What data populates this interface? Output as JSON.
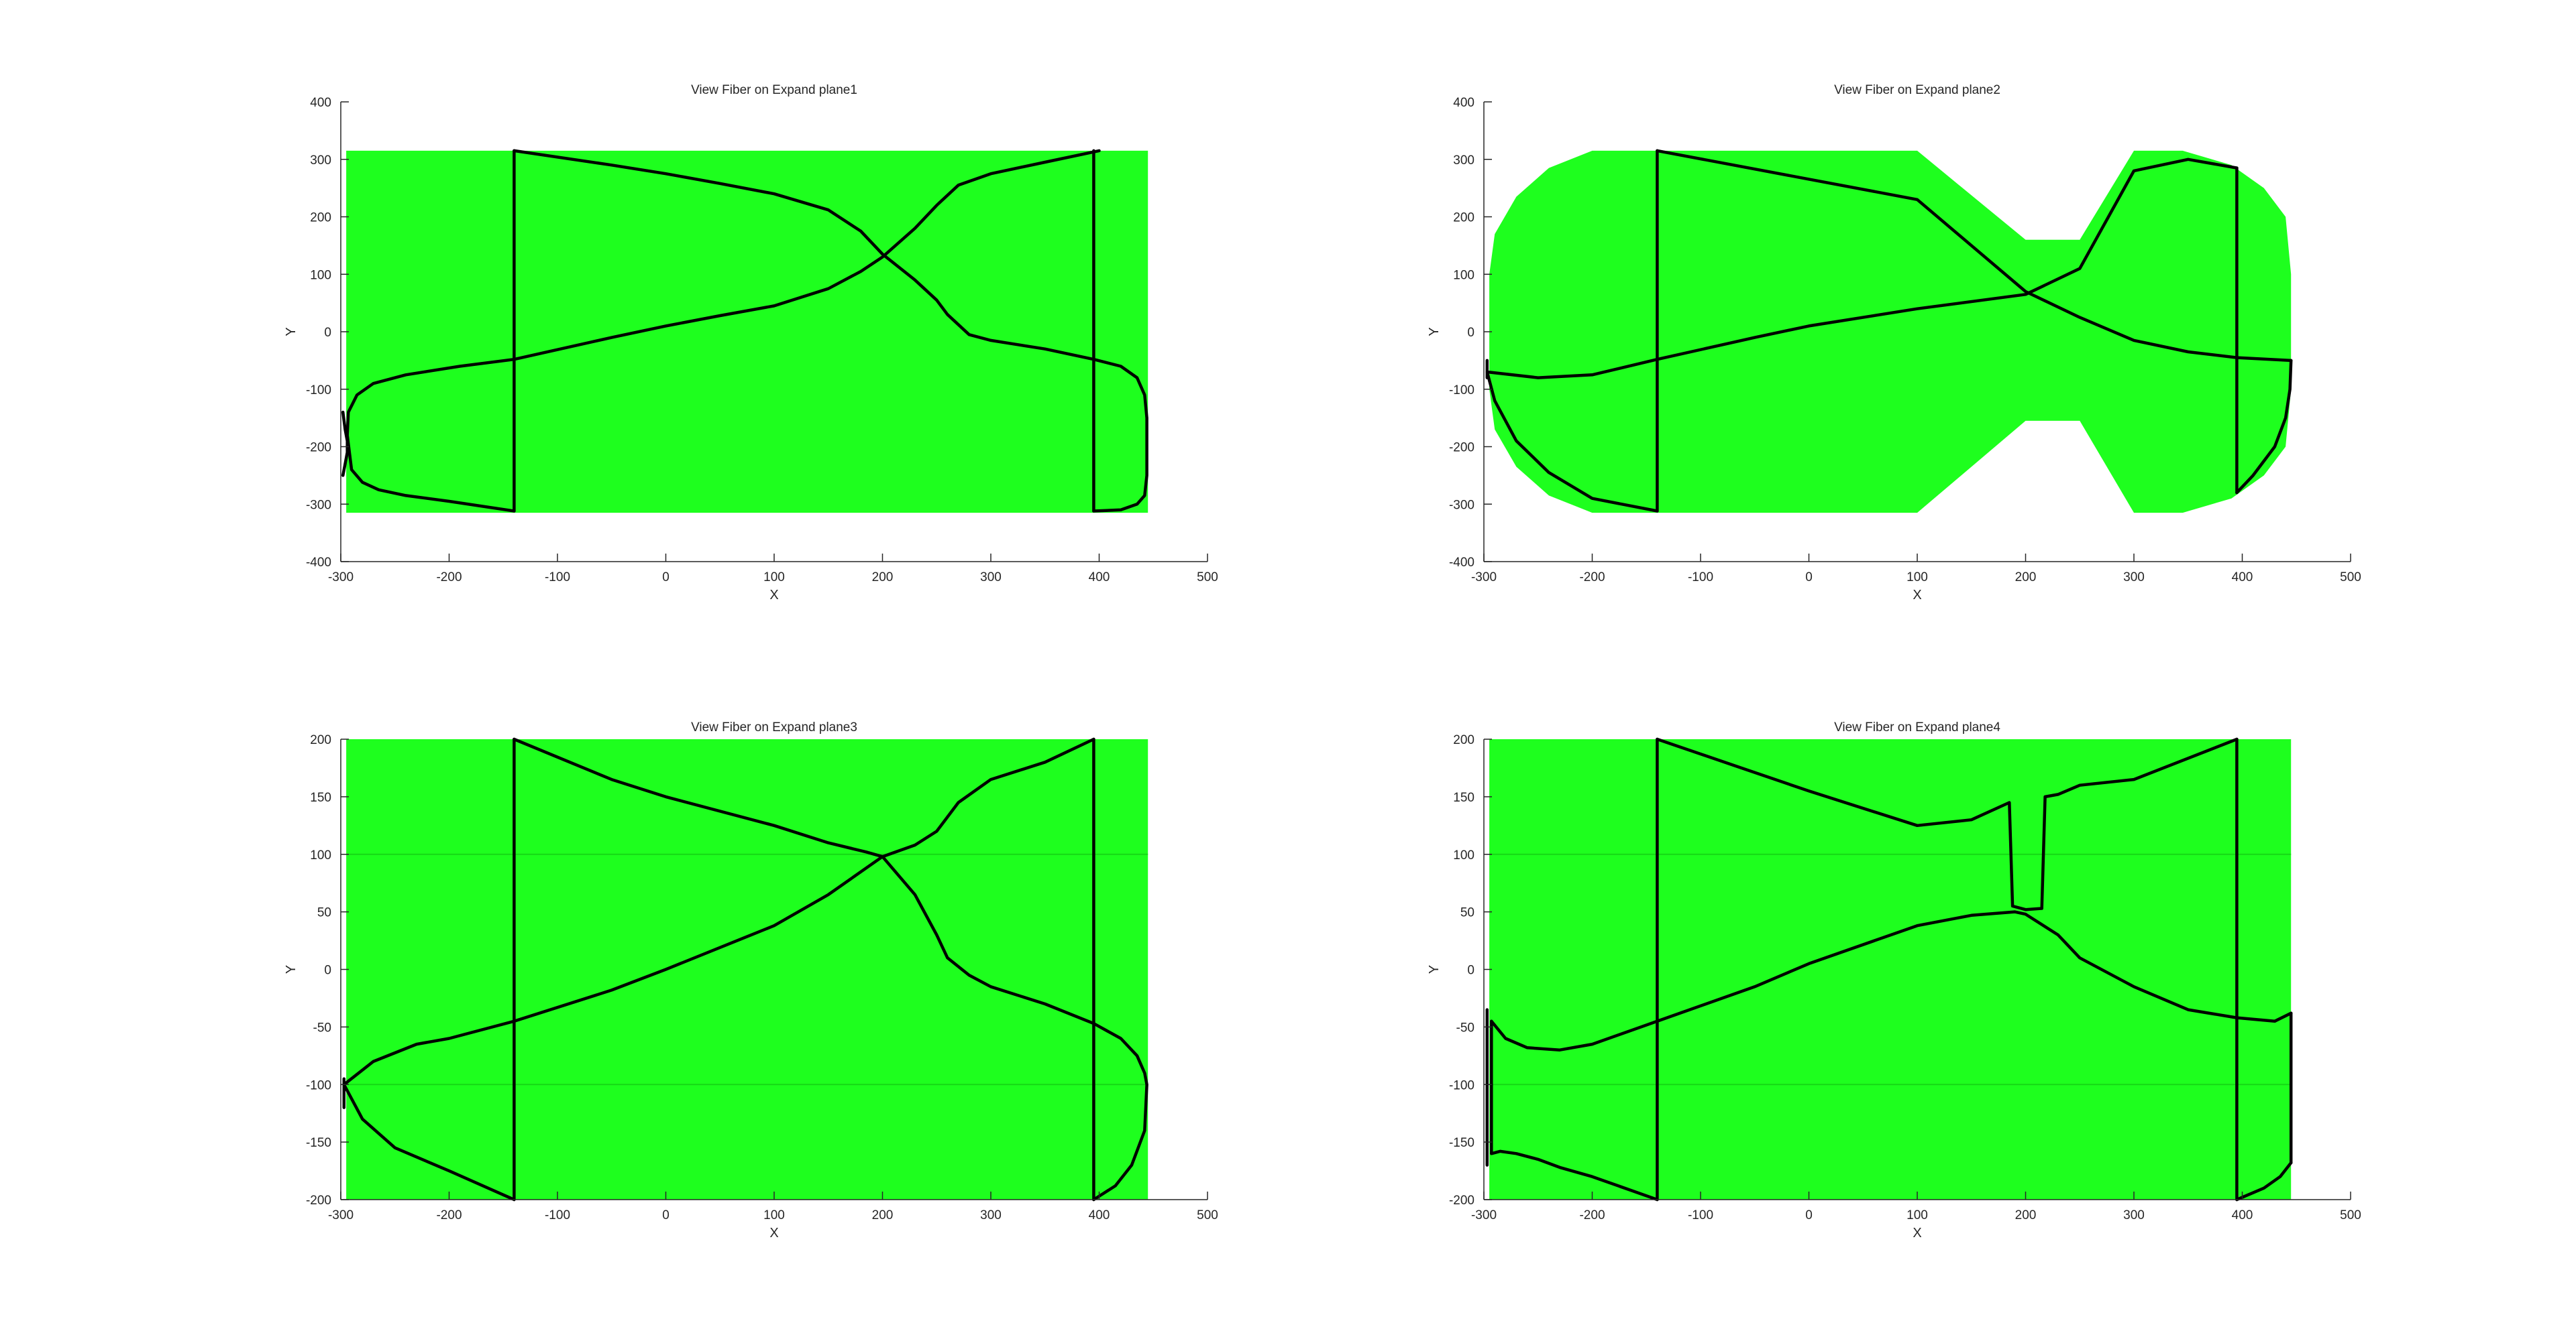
{
  "figure": {
    "background": "#ffffff",
    "fill_color": "#1eff1e",
    "line_color": "#000000"
  },
  "chart_data": [
    {
      "type": "line",
      "title": "View Fiber on Expand plane1",
      "xlabel": "X",
      "ylabel": "Y",
      "xlim": [
        -300,
        500
      ],
      "ylim": [
        -400,
        400
      ],
      "xticks": [
        -300,
        -200,
        -100,
        0,
        100,
        200,
        300,
        400,
        500
      ],
      "yticks": [
        -400,
        -300,
        -200,
        -100,
        0,
        100,
        200,
        300,
        400
      ],
      "grid": false,
      "fill_region": [
        [
          -295,
          315
        ],
        [
          445,
          315
        ],
        [
          445,
          -315
        ],
        [
          -295,
          -315
        ]
      ],
      "series": [
        {
          "x": [
            -298,
            -296,
            -294,
            -294,
            -296,
            -298
          ],
          "y": [
            -140,
            -170,
            -190,
            -210,
            -230,
            -250
          ]
        },
        {
          "x": [
            -140,
            -140
          ],
          "y": [
            315,
            -312
          ]
        },
        {
          "x": [
            -140,
            -190,
            -240,
            -270,
            -285,
            -293,
            -294,
            -290,
            -280,
            -265,
            -240,
            -200,
            -140
          ],
          "y": [
            -48,
            -60,
            -75,
            -90,
            -110,
            -140,
            -180,
            -240,
            -262,
            -275,
            -285,
            -295,
            -312
          ]
        },
        {
          "x": [
            -140,
            -50,
            0,
            50,
            100,
            150,
            180,
            200,
            230,
            250,
            270,
            300,
            350,
            400
          ],
          "y": [
            -48,
            -10,
            10,
            28,
            45,
            75,
            105,
            130,
            180,
            220,
            255,
            275,
            295,
            315
          ]
        },
        {
          "x": [
            -140,
            -50,
            0,
            50,
            100,
            150,
            180,
            200,
            230,
            250,
            260,
            280,
            300,
            350,
            395
          ],
          "y": [
            315,
            290,
            275,
            258,
            240,
            212,
            175,
            135,
            90,
            55,
            30,
            -5,
            -15,
            -30,
            -48
          ]
        },
        {
          "x": [
            395,
            395
          ],
          "y": [
            315,
            -312
          ]
        },
        {
          "x": [
            395,
            420,
            435,
            442,
            444,
            444,
            442,
            435,
            420,
            395
          ],
          "y": [
            -48,
            -60,
            -80,
            -110,
            -150,
            -250,
            -285,
            -300,
            -310,
            -312
          ]
        }
      ]
    },
    {
      "type": "line",
      "title": "View Fiber on Expand plane2",
      "xlabel": "X",
      "ylabel": "Y",
      "xlim": [
        -300,
        500
      ],
      "ylim": [
        -400,
        400
      ],
      "xticks": [
        -300,
        -200,
        -100,
        0,
        100,
        200,
        300,
        400,
        500
      ],
      "yticks": [
        -400,
        -300,
        -200,
        -100,
        0,
        100,
        200,
        300,
        400
      ],
      "grid": false,
      "fill_region": [
        [
          -295,
          100
        ],
        [
          -290,
          170
        ],
        [
          -270,
          235
        ],
        [
          -240,
          285
        ],
        [
          -200,
          315
        ],
        [
          100,
          315
        ],
        [
          200,
          160
        ],
        [
          250,
          160
        ],
        [
          300,
          315
        ],
        [
          345,
          315
        ],
        [
          390,
          290
        ],
        [
          420,
          250
        ],
        [
          440,
          200
        ],
        [
          445,
          100
        ],
        [
          445,
          -100
        ],
        [
          440,
          -200
        ],
        [
          420,
          -250
        ],
        [
          390,
          -290
        ],
        [
          345,
          -315
        ],
        [
          300,
          -315
        ],
        [
          250,
          -155
        ],
        [
          200,
          -155
        ],
        [
          100,
          -315
        ],
        [
          -200,
          -315
        ],
        [
          -240,
          -285
        ],
        [
          -270,
          -235
        ],
        [
          -290,
          -170
        ],
        [
          -295,
          -100
        ]
      ],
      "series": [
        {
          "x": [
            -297,
            -297
          ],
          "y": [
            -50,
            -80
          ]
        },
        {
          "x": [
            -140,
            -140
          ],
          "y": [
            315,
            -312
          ]
        },
        {
          "x": [
            -297,
            -290,
            -270,
            -240,
            -200,
            -140
          ],
          "y": [
            -70,
            -120,
            -190,
            -245,
            -290,
            -312
          ]
        },
        {
          "x": [
            -297,
            -250,
            -200,
            -140,
            -50,
            0,
            100,
            200,
            250,
            300,
            350,
            395
          ],
          "y": [
            -70,
            -80,
            -75,
            -48,
            -10,
            10,
            40,
            65,
            110,
            280,
            300,
            285
          ]
        },
        {
          "x": [
            -140,
            100,
            200,
            250,
            300,
            350,
            395,
            445
          ],
          "y": [
            315,
            230,
            70,
            25,
            -15,
            -35,
            -45,
            -50
          ]
        },
        {
          "x": [
            395,
            395
          ],
          "y": [
            285,
            -280
          ]
        },
        {
          "x": [
            445,
            444,
            440,
            430,
            410,
            395
          ],
          "y": [
            -50,
            -100,
            -150,
            -200,
            -250,
            -280
          ]
        }
      ]
    },
    {
      "type": "line",
      "title": "View Fiber on Expand plane3",
      "xlabel": "X",
      "ylabel": "Y",
      "xlim": [
        -300,
        500
      ],
      "ylim": [
        -200,
        200
      ],
      "xticks": [
        -300,
        -200,
        -100,
        0,
        100,
        200,
        300,
        400,
        500
      ],
      "yticks": [
        -200,
        -150,
        -100,
        -50,
        0,
        50,
        100,
        150,
        200
      ],
      "grid": false,
      "fill_region": [
        [
          -295,
          200
        ],
        [
          445,
          200
        ],
        [
          445,
          -200
        ],
        [
          -295,
          -200
        ]
      ],
      "faint_lines_y": [
        100,
        -100
      ],
      "series": [
        {
          "x": [
            -297,
            -297
          ],
          "y": [
            -95,
            -120
          ]
        },
        {
          "x": [
            -140,
            -140
          ],
          "y": [
            200,
            -200
          ]
        },
        {
          "x": [
            -297,
            -280,
            -250,
            -200,
            -140
          ],
          "y": [
            -100,
            -130,
            -155,
            -175,
            -200
          ]
        },
        {
          "x": [
            -297,
            -270,
            -230,
            -200,
            -140,
            -50,
            0,
            100,
            150,
            200,
            230,
            250,
            270,
            300,
            350,
            395
          ],
          "y": [
            -100,
            -80,
            -65,
            -60,
            -45,
            -18,
            0,
            38,
            65,
            98,
            108,
            120,
            145,
            165,
            180,
            200
          ]
        },
        {
          "x": [
            -140,
            -50,
            0,
            100,
            150,
            185,
            200,
            230,
            250,
            260,
            280,
            300,
            350,
            395
          ],
          "y": [
            200,
            165,
            150,
            125,
            110,
            102,
            98,
            65,
            30,
            10,
            -5,
            -15,
            -30,
            -47
          ]
        },
        {
          "x": [
            395,
            395
          ],
          "y": [
            200,
            -200
          ]
        },
        {
          "x": [
            395,
            420,
            435,
            442,
            444,
            442,
            430,
            415,
            395
          ],
          "y": [
            -47,
            -60,
            -75,
            -90,
            -100,
            -140,
            -170,
            -188,
            -200
          ]
        }
      ]
    },
    {
      "type": "line",
      "title": "View Fiber on Expand plane4",
      "xlabel": "X",
      "ylabel": "Y",
      "xlim": [
        -300,
        500
      ],
      "ylim": [
        -200,
        200
      ],
      "xticks": [
        -300,
        -200,
        -100,
        0,
        100,
        200,
        300,
        400,
        500
      ],
      "yticks": [
        -200,
        -150,
        -100,
        -50,
        0,
        50,
        100,
        150,
        200
      ],
      "grid": false,
      "fill_region": [
        [
          -295,
          200
        ],
        [
          445,
          200
        ],
        [
          445,
          -200
        ],
        [
          -295,
          -200
        ]
      ],
      "faint_lines_y": [
        100,
        -100
      ],
      "series": [
        {
          "x": [
            -297,
            -297
          ],
          "y": [
            -35,
            -170
          ]
        },
        {
          "x": [
            -293,
            -293
          ],
          "y": [
            -45,
            -160
          ]
        },
        {
          "x": [
            -140,
            -140
          ],
          "y": [
            200,
            -200
          ]
        },
        {
          "x": [
            -293,
            -285,
            -270,
            -250,
            -230,
            -200,
            -140
          ],
          "y": [
            -160,
            -158,
            -160,
            -165,
            -172,
            -180,
            -200
          ]
        },
        {
          "x": [
            -293,
            -280,
            -260,
            -230,
            -200,
            -140,
            -50,
            0,
            100,
            150,
            190,
            200,
            230,
            250,
            300,
            350,
            395,
            430,
            445
          ],
          "y": [
            -45,
            -60,
            -68,
            -70,
            -65,
            -45,
            -15,
            5,
            38,
            47,
            50,
            48,
            30,
            10,
            -15,
            -35,
            -42,
            -45,
            -38
          ]
        },
        {
          "x": [
            -140,
            0,
            100,
            150,
            185,
            188,
            200,
            215,
            218,
            230,
            250,
            300,
            395
          ],
          "y": [
            200,
            155,
            125,
            130,
            145,
            55,
            52,
            53,
            150,
            152,
            160,
            165,
            200
          ]
        },
        {
          "x": [
            395,
            395
          ],
          "y": [
            200,
            -200
          ]
        },
        {
          "x": [
            445,
            445
          ],
          "y": [
            -38,
            -168
          ]
        },
        {
          "x": [
            395,
            420,
            435,
            445
          ],
          "y": [
            -200,
            -190,
            -180,
            -168
          ]
        }
      ]
    }
  ]
}
